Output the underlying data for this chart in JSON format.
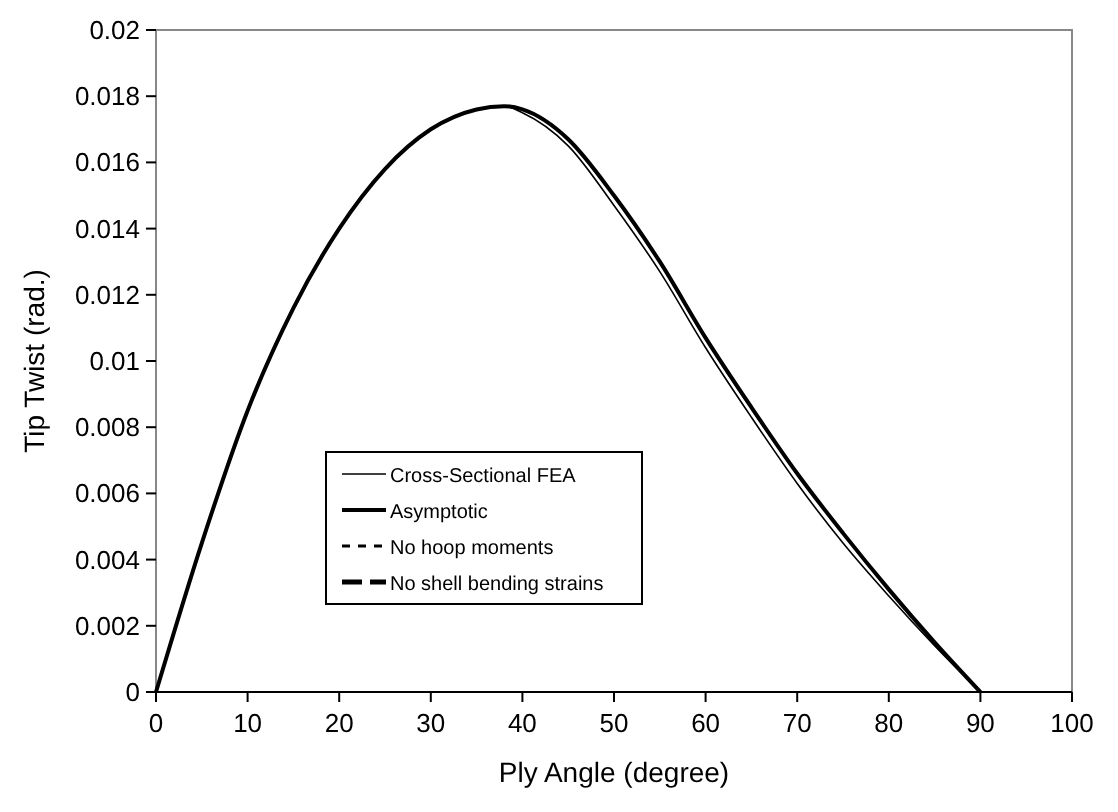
{
  "chart_data": {
    "type": "line",
    "xlabel": "Ply Angle (degree)",
    "ylabel": "Tip Twist (rad.)",
    "x": [
      0,
      5,
      10,
      15,
      20,
      25,
      30,
      35,
      38,
      40,
      45,
      50,
      55,
      60,
      65,
      70,
      75,
      80,
      85,
      90
    ],
    "xlim": [
      0,
      100
    ],
    "xticks": [
      0,
      10,
      20,
      30,
      40,
      50,
      60,
      70,
      80,
      90,
      100
    ],
    "ylim": [
      0,
      0.02
    ],
    "yticks": [
      0,
      0.002,
      0.004,
      0.006,
      0.008,
      0.01,
      0.012,
      0.014,
      0.016,
      0.018,
      0.02
    ],
    "grid": false,
    "legend": "bottom left",
    "marker": "none",
    "series": [
      {
        "name": "Cross-Sectional FEA",
        "color": "#000000",
        "line_style": "solid",
        "values": [
          0,
          0.0045,
          0.0085,
          0.0116,
          0.014,
          0.0158,
          0.017,
          0.0176,
          0.0177,
          0.0175,
          0.0165,
          0.0147,
          0.0127,
          0.0104,
          0.0083,
          0.0063,
          0.0045,
          0.0029,
          0.0014,
          0
        ]
      },
      {
        "name": "Asymptotic",
        "color": "#000000",
        "line_style": "solid",
        "values": [
          0,
          0.0045,
          0.0085,
          0.0116,
          0.014,
          0.0158,
          0.017,
          0.0176,
          0.0177,
          0.0176,
          0.0167,
          0.015,
          0.013,
          0.0107,
          0.0086,
          0.0066,
          0.0048,
          0.0031,
          0.0015,
          0
        ]
      },
      {
        "name": "No hoop moments",
        "color": "#000000",
        "line_style": "dashed",
        "values": [
          null,
          null,
          null,
          null,
          null,
          null,
          null,
          null,
          null,
          null,
          null,
          null,
          null,
          null,
          null,
          null,
          null,
          null,
          null,
          null
        ]
      },
      {
        "name": "No shell bending strains",
        "color": "#000000",
        "line_style": "dashed",
        "values": [
          null,
          null,
          null,
          null,
          null,
          null,
          null,
          null,
          null,
          null,
          null,
          null,
          null,
          null,
          null,
          null,
          null,
          null,
          null,
          null
        ]
      }
    ]
  }
}
